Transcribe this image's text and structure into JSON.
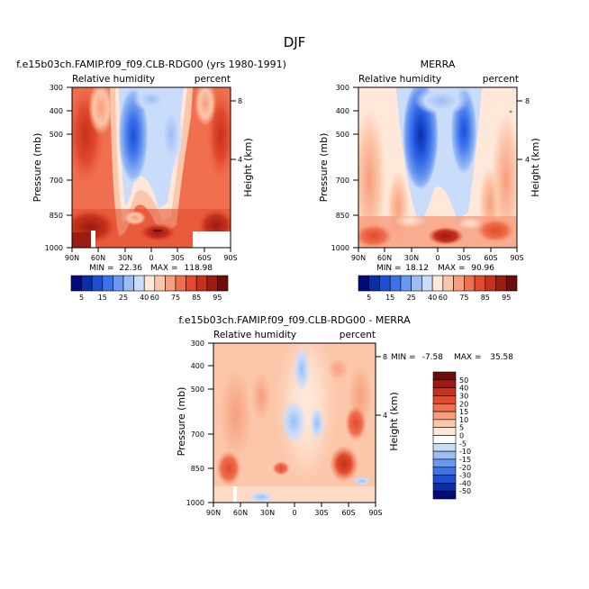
{
  "figure": {
    "title": "DJF"
  },
  "colors": {
    "model_scale": [
      "#000a78",
      "#0a2ea8",
      "#1d4fd6",
      "#3c72eb",
      "#6a97f0",
      "#9dbcf5",
      "#c9dcfa",
      "#ffe8da",
      "#fbc6a9",
      "#f79e7d",
      "#ef6f4e",
      "#e14a2c",
      "#c6301c",
      "#9c1b12",
      "#6e0b0b"
    ],
    "diff_scale": [
      "#000a78",
      "#0a2ea8",
      "#1d4fd6",
      "#3c72eb",
      "#6a97f0",
      "#9dbcf5",
      "#c9dcfa",
      "#ffffff",
      "#ffe8da",
      "#fbc6a9",
      "#f79e7d",
      "#ef6f4e",
      "#e14a2c",
      "#c6301c",
      "#9c1b12",
      "#6e0b0b"
    ]
  },
  "chart_data": [
    {
      "type": "heatmap",
      "name": "model",
      "title": "f.e15b03ch.FAMIP.f09_f09.CLB-RDG00 (yrs 1980-1991)",
      "left_label": "Relative humidity",
      "right_label": "percent",
      "ylabel": "Pressure (mb)",
      "y2label": "Height (km)",
      "x_ticks": [
        "90N",
        "60N",
        "30N",
        "0",
        "30S",
        "60S",
        "90S"
      ],
      "y_ticks": [
        "300",
        "400",
        "500",
        "700",
        "850",
        "1000"
      ],
      "y2_ticks": [
        "8",
        "4"
      ],
      "stats": {
        "min_label": "MIN =",
        "min": "22.36",
        "max_label": "MAX =",
        "max": "118.98"
      },
      "colorbar_labels": [
        "5",
        "15",
        "25",
        "40",
        "60",
        "75",
        "85",
        "95"
      ]
    },
    {
      "type": "heatmap",
      "name": "merra",
      "title": "MERRA",
      "left_label": "Relative humidity",
      "right_label": "percent",
      "ylabel": "Pressure (mb)",
      "y2label": "Height (km)",
      "x_ticks": [
        "90N",
        "60N",
        "30N",
        "0",
        "30S",
        "60S",
        "90S"
      ],
      "y_ticks": [
        "300",
        "400",
        "500",
        "700",
        "850",
        "1000"
      ],
      "y2_ticks": [
        "8",
        "4"
      ],
      "stats": {
        "min_label": "MIN =",
        "min": "18.12",
        "max_label": "MAX =",
        "max": "90.96"
      },
      "colorbar_labels": [
        "5",
        "15",
        "25",
        "40",
        "60",
        "75",
        "85",
        "95"
      ]
    },
    {
      "type": "heatmap",
      "name": "difference",
      "title": "f.e15b03ch.FAMIP.f09_f09.CLB-RDG00 - MERRA",
      "left_label": "Relative humidity",
      "right_label": "percent",
      "ylabel": "Pressure (mb)",
      "y2label": "Height (km)",
      "x_ticks": [
        "90N",
        "60N",
        "30N",
        "0",
        "30S",
        "60S",
        "90S"
      ],
      "y_ticks": [
        "300",
        "400",
        "500",
        "700",
        "850",
        "1000"
      ],
      "y2_ticks": [
        "8",
        "4"
      ],
      "stats": {
        "min_label": "MIN =",
        "min": "-7.58",
        "max_label": "MAX =",
        "max": "35.58"
      },
      "colorbar_labels": [
        "50",
        "40",
        "30",
        "20",
        "15",
        "10",
        "5",
        "0",
        "-5",
        "-10",
        "-15",
        "-20",
        "-30",
        "-40",
        "-50"
      ]
    }
  ]
}
